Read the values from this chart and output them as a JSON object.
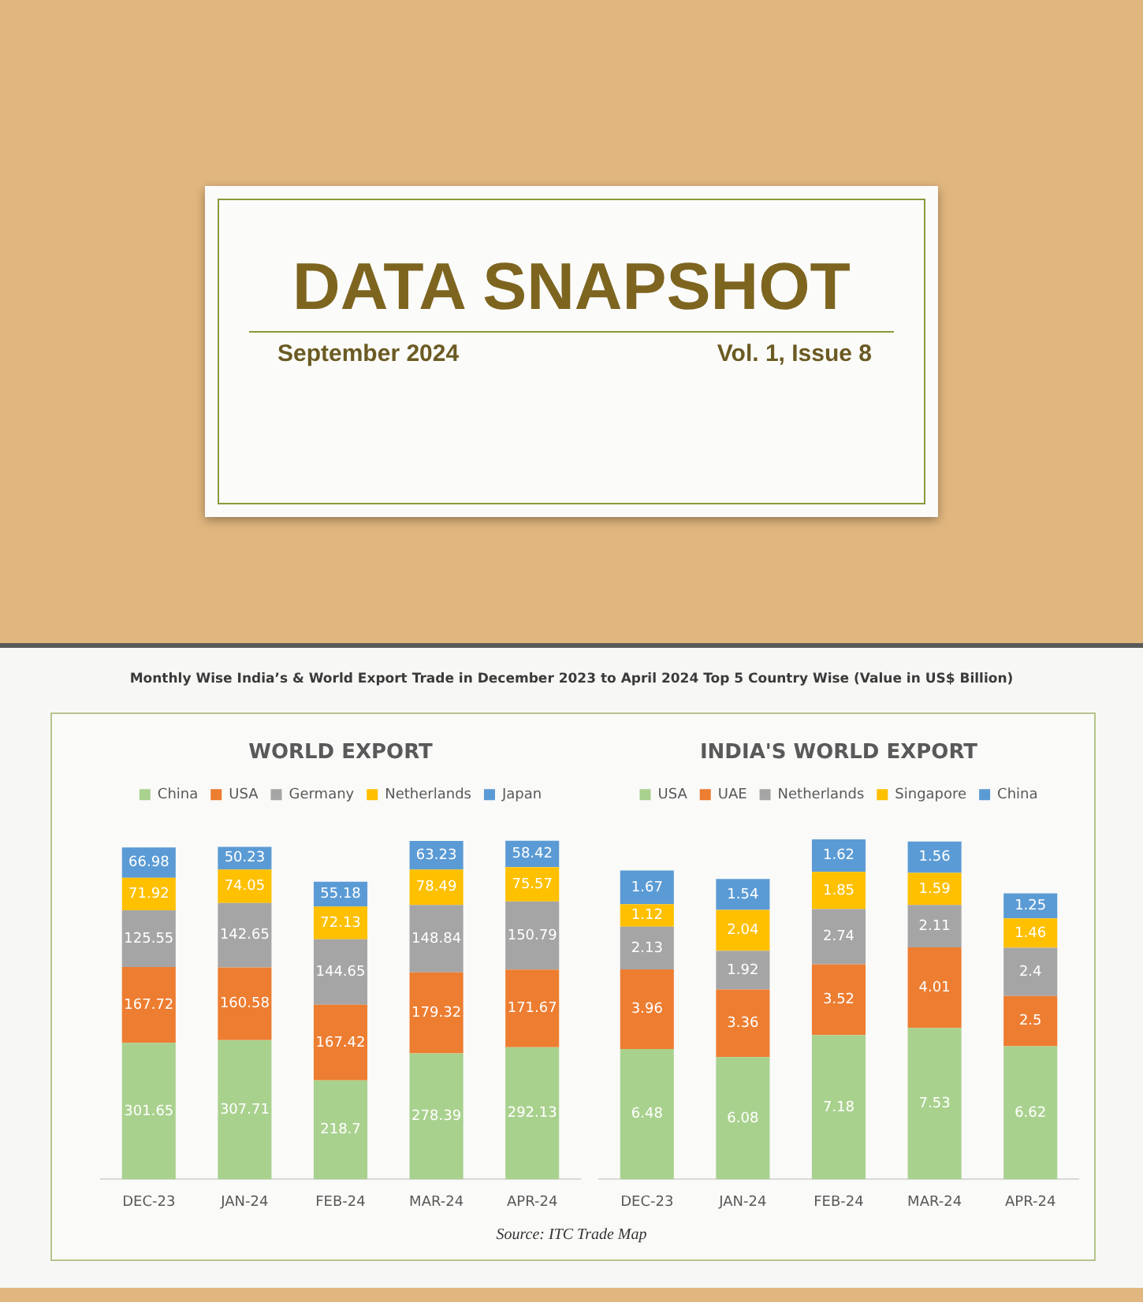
{
  "chart_data": [
    {
      "type": "other",
      "title": "DATA SNAPSHOT",
      "subtitle": "September 2024",
      "annotations": [
        "Vol. 1, Issue 8"
      ]
    },
    {
      "type": "bar",
      "title": "WORLD EXPORT",
      "stacked": true,
      "data_labels": true,
      "legend": "top",
      "grid": false,
      "tick_labels": "x",
      "categories": [
        "DEC-23",
        "JAN-24",
        "FEB-24",
        "MAR-24",
        "APR-24"
      ],
      "series": [
        {
          "name": "China",
          "color": "#a9d18e",
          "values": [
            301.65,
            307.71,
            218.7,
            278.39,
            292.13
          ]
        },
        {
          "name": "USA",
          "color": "#ed7d31",
          "values": [
            167.72,
            160.58,
            167.42,
            179.32,
            171.67
          ]
        },
        {
          "name": "Germany",
          "color": "#a5a5a5",
          "values": [
            125.55,
            142.65,
            144.65,
            148.84,
            150.79
          ]
        },
        {
          "name": "Netherlands",
          "color": "#ffc000",
          "values": [
            71.92,
            74.05,
            72.13,
            78.49,
            75.57
          ]
        },
        {
          "name": "Japan",
          "color": "#5b9bd5",
          "values": [
            66.98,
            50.23,
            55.18,
            63.23,
            58.42
          ]
        }
      ],
      "annotations": [
        "Monthly Wise India’s & World Export Trade in December 2023 to April 2024 Top 5 Country Wise (Value in US$ Billion)"
      ]
    },
    {
      "type": "bar",
      "title": "INDIA'S WORLD EXPORT",
      "stacked": true,
      "data_labels": true,
      "legend": "top",
      "grid": false,
      "tick_labels": "x",
      "categories": [
        "DEC-23",
        "JAN-24",
        "FEB-24",
        "MAR-24",
        "APR-24"
      ],
      "series": [
        {
          "name": "USA",
          "color": "#a9d18e",
          "values": [
            6.48,
            6.08,
            7.18,
            7.53,
            6.62
          ]
        },
        {
          "name": "UAE",
          "color": "#ed7d31",
          "values": [
            3.96,
            3.36,
            3.52,
            4.01,
            2.5
          ]
        },
        {
          "name": "Netherlands",
          "color": "#a5a5a5",
          "values": [
            2.13,
            1.92,
            2.74,
            2.11,
            2.4
          ]
        },
        {
          "name": "Singapore",
          "color": "#ffc000",
          "values": [
            1.12,
            2.04,
            1.85,
            1.59,
            1.46
          ]
        },
        {
          "name": "China",
          "color": "#5b9bd5",
          "values": [
            1.67,
            1.54,
            1.62,
            1.56,
            1.25
          ]
        }
      ],
      "annotations": [
        "Source: ITC Trade Map"
      ]
    }
  ]
}
